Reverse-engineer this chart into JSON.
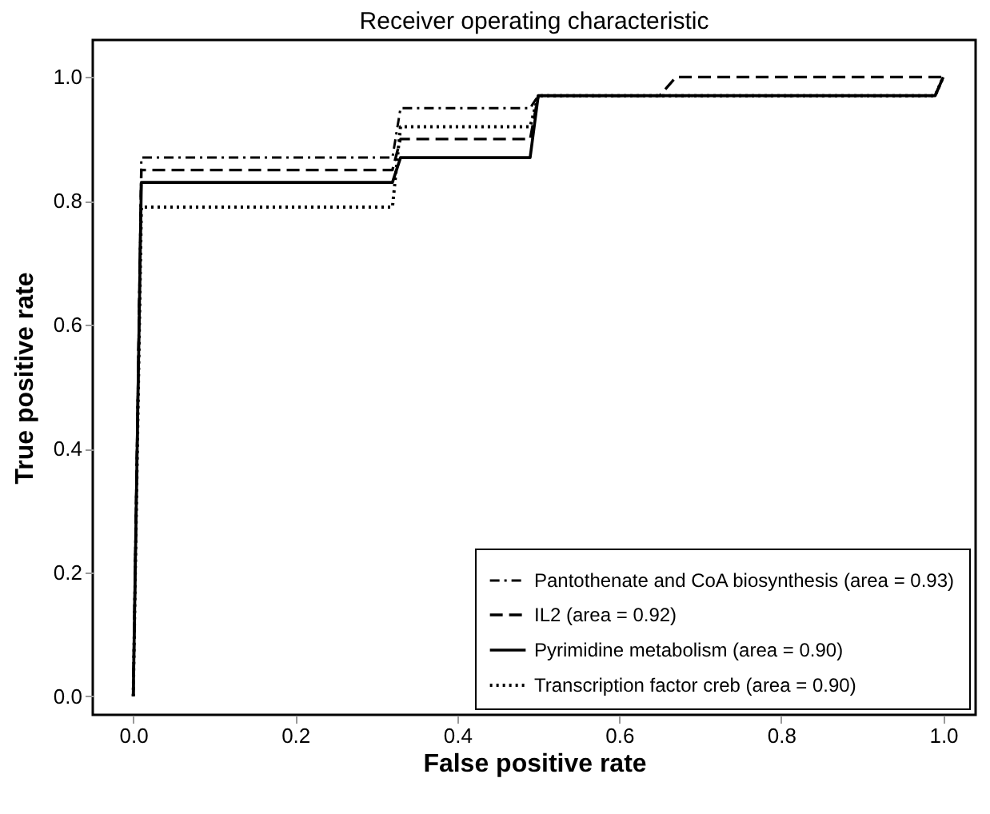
{
  "chart_data": {
    "type": "line",
    "title": "Receiver operating characteristic",
    "xlabel": "False positive rate",
    "ylabel": "True positive rate",
    "xlim": [
      -0.05,
      1.04
    ],
    "ylim": [
      -0.03,
      1.06
    ],
    "xticks": [
      {
        "value": 0,
        "label": "0.0"
      },
      {
        "value": 0.2,
        "label": "0.2"
      },
      {
        "value": 0.4,
        "label": "0.4"
      },
      {
        "value": 0.6,
        "label": "0.6"
      },
      {
        "value": 0.8,
        "label": "0.8"
      },
      {
        "value": 1,
        "label": "1.0"
      }
    ],
    "yticks": [
      {
        "value": 0,
        "label": "0.0"
      },
      {
        "value": 0.2,
        "label": "0.2"
      },
      {
        "value": 0.4,
        "label": "0.4"
      },
      {
        "value": 0.6,
        "label": "0.6"
      },
      {
        "value": 0.8,
        "label": "0.8"
      },
      {
        "value": 1,
        "label": "1.0"
      }
    ],
    "grid": false,
    "legend": "bottom right",
    "marker": "none",
    "series": [
      {
        "name": "Pantothenate and CoA biosynthesis (area = 0.93)",
        "color": "#000000",
        "line_style": "dashdot",
        "x": [
          0,
          0.01,
          0.32,
          0.33,
          0.49,
          0.5,
          0.99,
          1
        ],
        "values": [
          0,
          0.87,
          0.87,
          0.95,
          0.95,
          0.97,
          0.97,
          1
        ]
      },
      {
        "name": "IL2 (area = 0.92)",
        "color": "#000000",
        "line_style": "dashed",
        "x": [
          0,
          0.01,
          0.32,
          0.33,
          0.49,
          0.5,
          0.65,
          0.67,
          1
        ],
        "values": [
          0,
          0.85,
          0.85,
          0.9,
          0.9,
          0.97,
          0.97,
          1,
          1
        ]
      },
      {
        "name": "Pyrimidine metabolism (area = 0.90)",
        "color": "#000000",
        "line_style": "solid",
        "x": [
          0,
          0.01,
          0.32,
          0.33,
          0.49,
          0.5,
          0.99,
          1
        ],
        "values": [
          0,
          0.83,
          0.83,
          0.87,
          0.87,
          0.97,
          0.97,
          1
        ]
      },
      {
        "name": "Transcription factor creb (area = 0.90)",
        "color": "#000000",
        "line_style": "dotted",
        "x": [
          0,
          0.01,
          0.32,
          0.33,
          0.49,
          0.5,
          0.99,
          1
        ],
        "values": [
          0,
          0.79,
          0.79,
          0.92,
          0.92,
          0.97,
          0.97,
          1
        ]
      }
    ]
  }
}
